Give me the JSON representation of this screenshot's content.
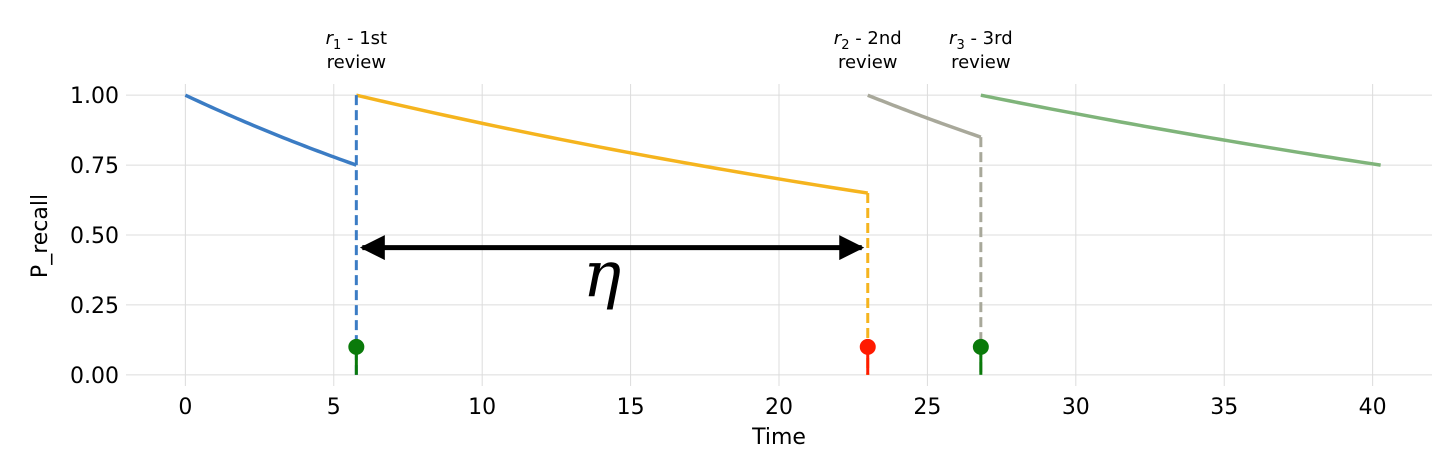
{
  "chart_data": {
    "type": "line",
    "xlabel": "Time",
    "ylabel": "P_recall",
    "xlim": [
      -2,
      42
    ],
    "ylim": [
      -0.04,
      1.04
    ],
    "xticks": [
      0,
      5,
      10,
      15,
      20,
      25,
      30,
      35,
      40
    ],
    "yticks": [
      0.0,
      0.25,
      0.5,
      0.75,
      1.0
    ],
    "xtick_labels": [
      "0",
      "5",
      "10",
      "15",
      "20",
      "25",
      "30",
      "35",
      "40"
    ],
    "ytick_labels": [
      "0.00",
      "0.25",
      "0.50",
      "0.75",
      "1.00"
    ],
    "grid": true,
    "series": [
      {
        "color": "#3b7cc4",
        "x": [
          0,
          5.76
        ],
        "y": [
          1.0,
          0.75
        ]
      },
      {
        "color": "#f5b41e",
        "x": [
          5.76,
          22.99
        ],
        "y": [
          1.0,
          0.65
        ]
      },
      {
        "color": "#a8a89a",
        "x": [
          22.99,
          26.8
        ],
        "y": [
          1.0,
          0.85
        ]
      },
      {
        "color": "#7fb47a",
        "x": [
          26.8,
          40.27
        ],
        "y": [
          1.0,
          0.75
        ]
      }
    ],
    "reviews": [
      {
        "x": 5.76,
        "y_top": 1.0,
        "line_color": "#3b7cc4",
        "stem_color": "#0a7a0a",
        "marker_value": 0.1,
        "sym": "r",
        "sub": "1",
        "text1": " - 1st",
        "text2": "review"
      },
      {
        "x": 22.99,
        "y_top": 0.65,
        "line_color": "#f5b41e",
        "stem_color": "#ff1a00",
        "marker_value": 0.1,
        "sym": "r",
        "sub": "2",
        "text1": " - 2nd",
        "text2": "review"
      },
      {
        "x": 26.8,
        "y_top": 0.85,
        "line_color": "#a8a89a",
        "stem_color": "#0a7a0a",
        "marker_value": 0.1,
        "sym": "r",
        "sub": "3",
        "text1": " - 3rd",
        "text2": "review"
      }
    ],
    "annotation": {
      "text": "η",
      "x_start": 5.76,
      "x_end": 22.99,
      "y": 0.455
    }
  }
}
